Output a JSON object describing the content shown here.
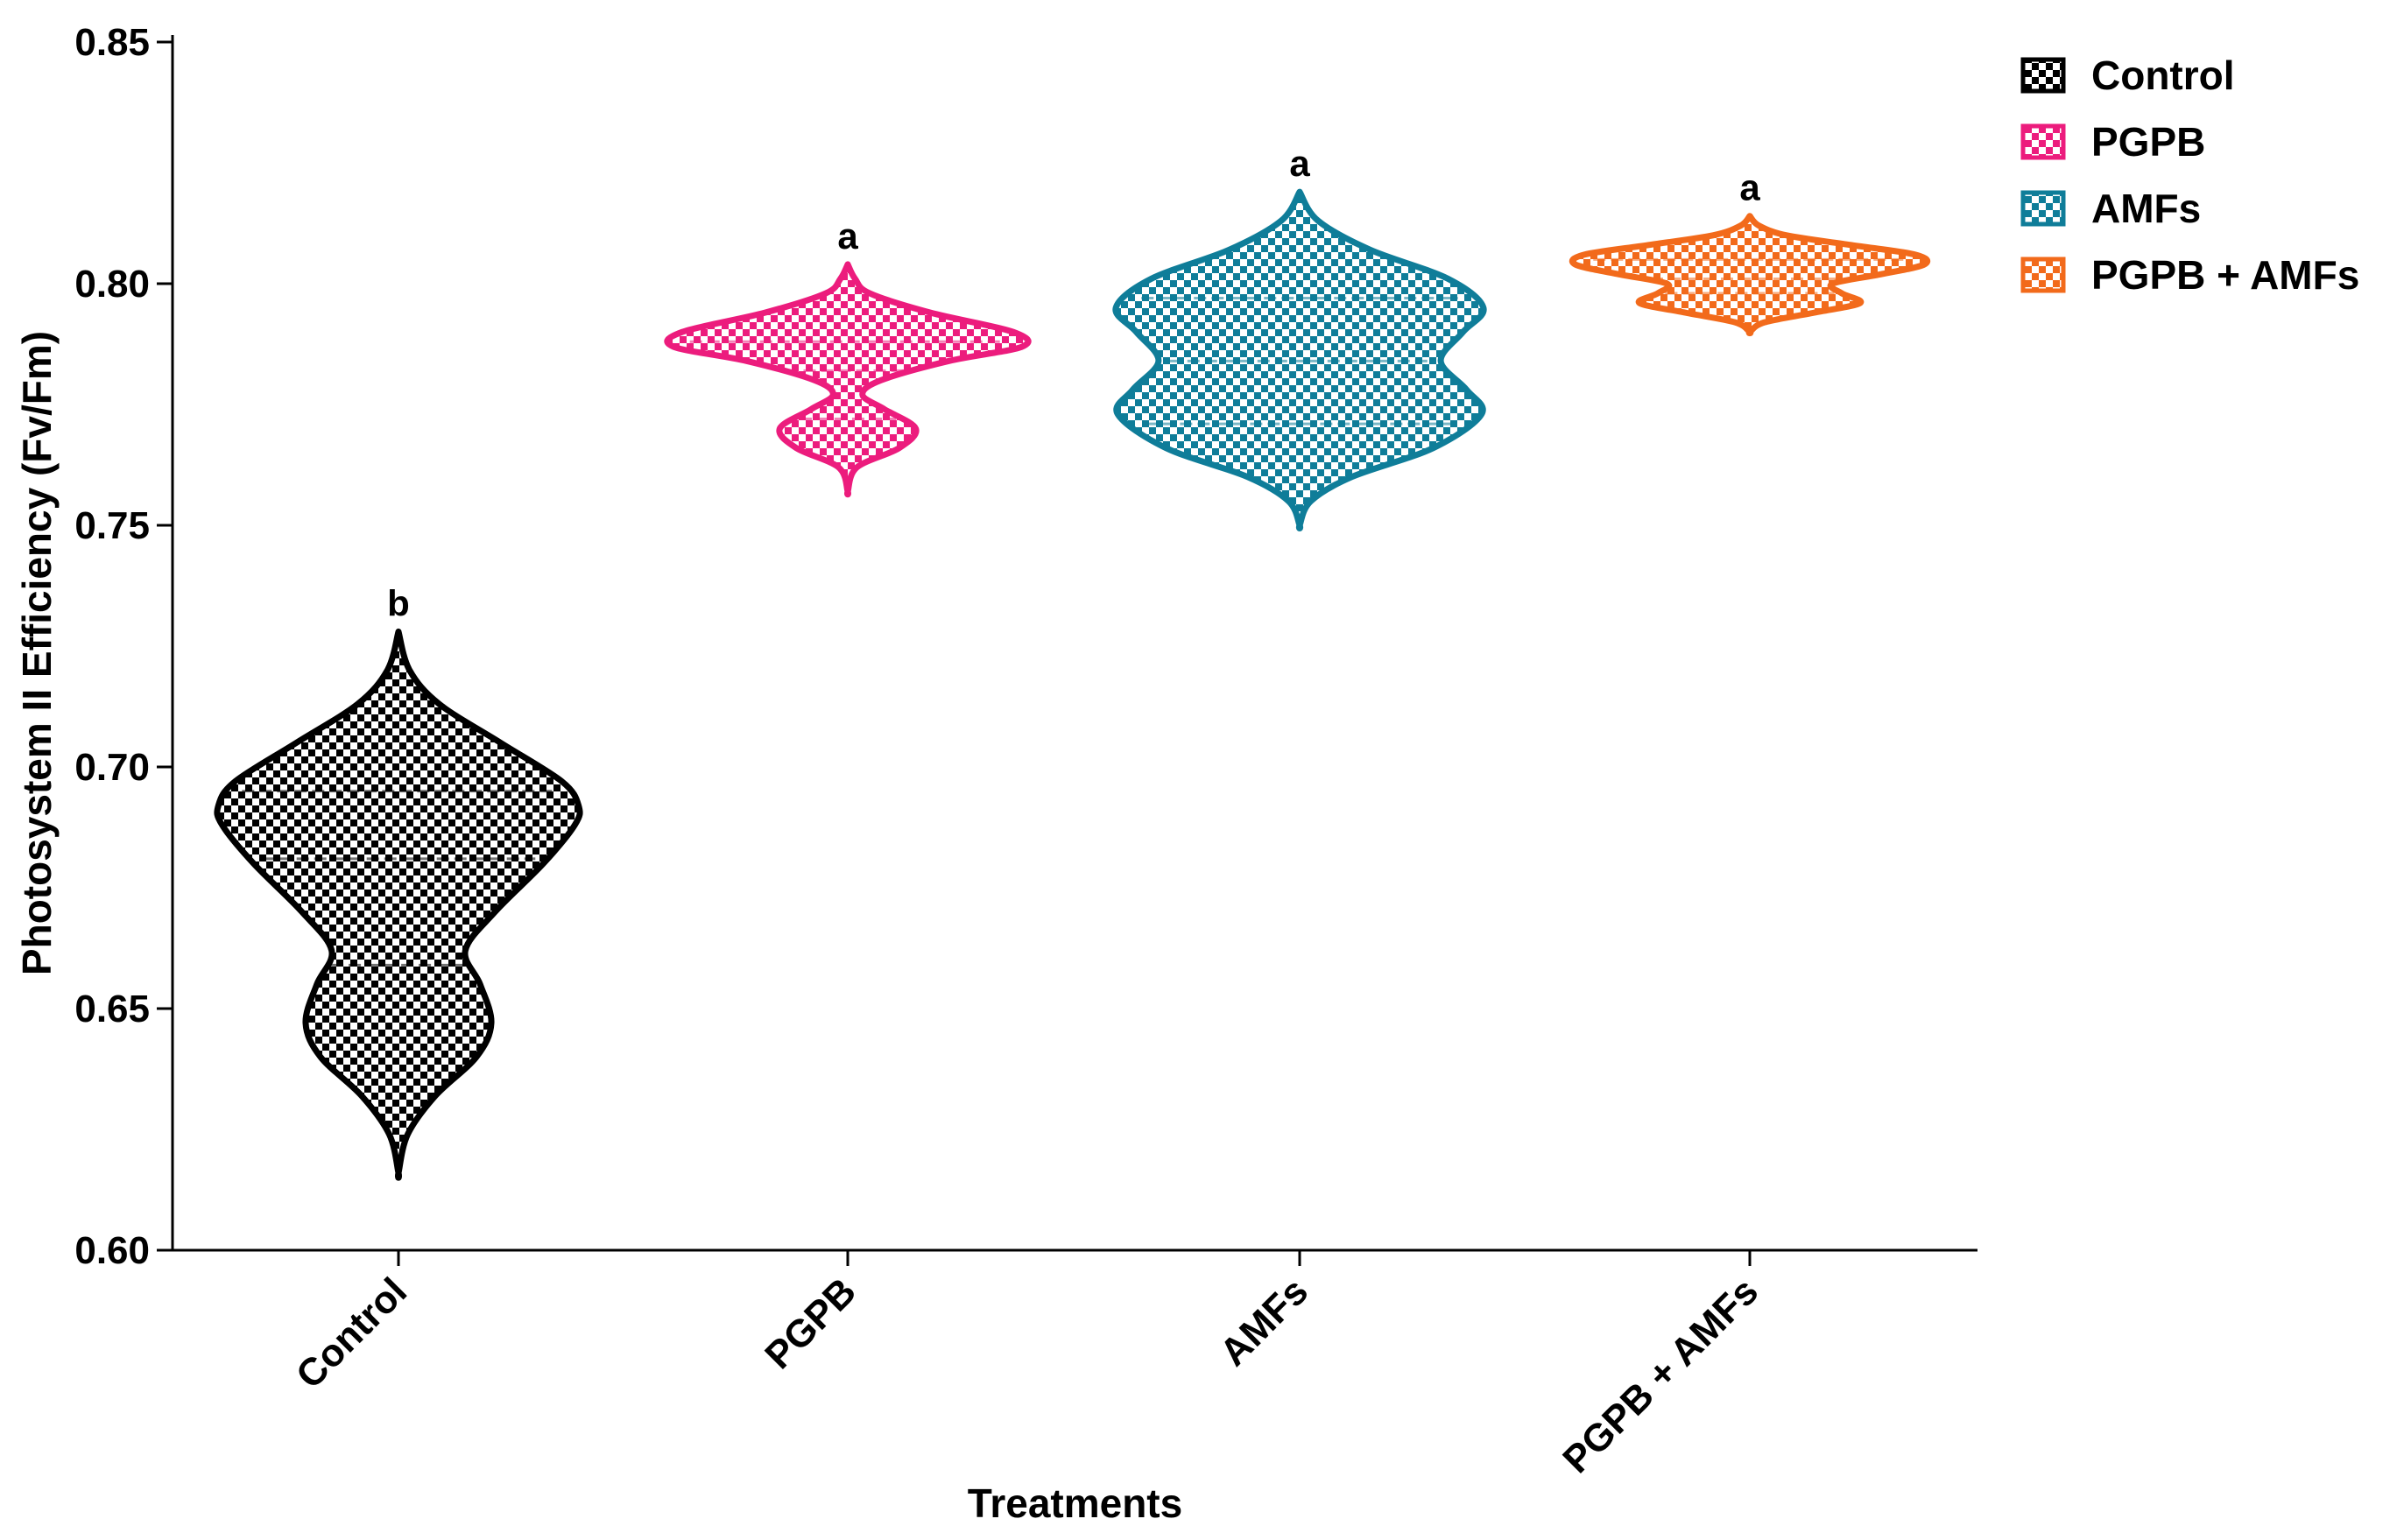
{
  "chart_data": {
    "type": "violin",
    "title": "",
    "xlabel": "Treatments",
    "ylabel": "Photosystem II Efficiency (Fv/Fm)",
    "ylim": [
      0.6,
      0.85
    ],
    "yticks": [
      "0.60",
      "0.65",
      "0.70",
      "0.75",
      "0.80",
      "0.85"
    ],
    "grid": false,
    "legend_position": "top-right",
    "categories": [
      "Control",
      "PGPB",
      "AMFs",
      "PGPB + AMFs"
    ],
    "series": [
      {
        "name": "Control",
        "color": "#000000",
        "min": 0.616,
        "max": 0.728,
        "median": 0.681,
        "q1": 0.659,
        "q3": 0.695,
        "significance": "b",
        "density": [
          [
            0.616,
            0.0
          ],
          [
            0.624,
            0.05
          ],
          [
            0.632,
            0.2
          ],
          [
            0.64,
            0.42
          ],
          [
            0.647,
            0.5
          ],
          [
            0.655,
            0.44
          ],
          [
            0.662,
            0.36
          ],
          [
            0.67,
            0.52
          ],
          [
            0.68,
            0.78
          ],
          [
            0.688,
            0.95
          ],
          [
            0.692,
            0.97
          ],
          [
            0.697,
            0.88
          ],
          [
            0.705,
            0.55
          ],
          [
            0.713,
            0.22
          ],
          [
            0.72,
            0.06
          ],
          [
            0.728,
            0.0
          ]
        ]
      },
      {
        "name": "PGPB",
        "color": "#EC1C7D",
        "min": 0.757,
        "max": 0.804,
        "median": 0.782,
        "q1": 0.772,
        "q3": 0.788,
        "significance": "a",
        "density": [
          [
            0.757,
            0.0
          ],
          [
            0.762,
            0.05
          ],
          [
            0.766,
            0.28
          ],
          [
            0.77,
            0.37
          ],
          [
            0.774,
            0.2
          ],
          [
            0.777,
            0.08
          ],
          [
            0.78,
            0.18
          ],
          [
            0.784,
            0.55
          ],
          [
            0.787,
            0.95
          ],
          [
            0.79,
            0.9
          ],
          [
            0.794,
            0.45
          ],
          [
            0.798,
            0.12
          ],
          [
            0.801,
            0.04
          ],
          [
            0.804,
            0.0
          ]
        ]
      },
      {
        "name": "AMFs",
        "color": "#0F7D99",
        "min": 0.75,
        "max": 0.819,
        "median": 0.784,
        "q1": 0.771,
        "q3": 0.797,
        "significance": "a",
        "density": [
          [
            0.75,
            0.0
          ],
          [
            0.755,
            0.06
          ],
          [
            0.76,
            0.28
          ],
          [
            0.766,
            0.72
          ],
          [
            0.773,
            0.98
          ],
          [
            0.778,
            0.9
          ],
          [
            0.784,
            0.76
          ],
          [
            0.79,
            0.88
          ],
          [
            0.795,
            0.99
          ],
          [
            0.801,
            0.8
          ],
          [
            0.807,
            0.38
          ],
          [
            0.813,
            0.1
          ],
          [
            0.819,
            0.0
          ]
        ]
      },
      {
        "name": "PGPB + AMFs",
        "color": "#F26A1B",
        "min": 0.79,
        "max": 0.814,
        "median": 0.801,
        "q1": 0.798,
        "q3": 0.805,
        "significance": "a",
        "density": [
          [
            0.79,
            0.0
          ],
          [
            0.792,
            0.08
          ],
          [
            0.794,
            0.35
          ],
          [
            0.796,
            0.6
          ],
          [
            0.798,
            0.5
          ],
          [
            0.8,
            0.45
          ],
          [
            0.802,
            0.72
          ],
          [
            0.804,
            0.95
          ],
          [
            0.806,
            0.9
          ],
          [
            0.808,
            0.55
          ],
          [
            0.81,
            0.2
          ],
          [
            0.812,
            0.05
          ],
          [
            0.814,
            0.0
          ]
        ]
      }
    ]
  }
}
